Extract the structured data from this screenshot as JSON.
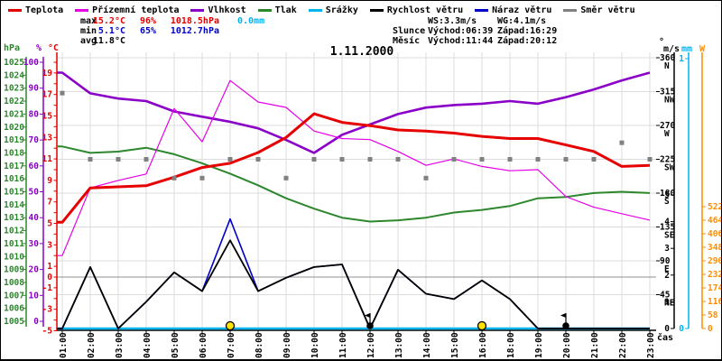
{
  "title": "1.11.2000",
  "legend": [
    {
      "label": "Teplota",
      "color": "#e60000"
    },
    {
      "label": "Přízemní teplota",
      "color": "#e500e5"
    },
    {
      "label": "Vlhkost",
      "color": "#8a00c8"
    },
    {
      "label": "Tlak",
      "color": "#2d872d"
    },
    {
      "label": "Srážky",
      "color": "#00b4f0"
    },
    {
      "label": "Rychlost větru",
      "color": "#000000"
    },
    {
      "label": "Náraz větru",
      "color": "#0000c8"
    },
    {
      "label": "Směr větru",
      "color": "#808080"
    }
  ],
  "stats": {
    "max": {
      "label": "max",
      "temp": "15.2°C",
      "hum": "96%",
      "pres": "1018.5hPa",
      "precip": "0.0mm"
    },
    "min": {
      "label": "min",
      "temp": "5.1°C",
      "hum": "65%",
      "pres": "1012.7hPa"
    },
    "avg": {
      "label": "avg",
      "temp": "11.8°C"
    },
    "ws": "WS:3.3m/s",
    "wg": "WG:4.1m/s",
    "sun": {
      "label": "Slunce",
      "rise": "Východ:06:39",
      "set": "Západ:16:29"
    },
    "moon": {
      "label": "Měsíc",
      "rise": "Východ:11:44",
      "set": "Západ:20:12"
    }
  },
  "axes": {
    "pressure_unit": "hPa",
    "humidity_unit": "%",
    "temperature_unit": "°C",
    "direction_unit": "°",
    "windspeed_unit": "m/s",
    "precip_unit": "mm",
    "radiation_unit": "W",
    "time_unit": "čas"
  },
  "colors": {
    "temperature": "#e60000",
    "ground_temperature": "#e500e5",
    "humidity": "#8a00c8",
    "pressure": "#2d872d",
    "precipitation": "#00b4f0",
    "wind_speed": "#000000",
    "wind_gust": "#0000c8",
    "wind_direction": "#808080",
    "radiation_axis": "#ff8c00",
    "grid": "#dcdcdc",
    "zero_line": "#909090",
    "sun_marker": "#ffe400",
    "moon_marker": "#000000",
    "axis_black": "#000000"
  },
  "chart_data": {
    "type": "line",
    "x": [
      "01:00",
      "02:00",
      "03:00",
      "04:00",
      "05:00",
      "06:00",
      "07:00",
      "08:00",
      "09:00",
      "10:00",
      "11:00",
      "12:00",
      "13:00",
      "14:00",
      "15:00",
      "16:00",
      "18:00",
      "19:00",
      "20:00",
      "21:00",
      "22:00",
      "23:00"
    ],
    "series": [
      {
        "name": "Teplota",
        "axis": "temp",
        "values": [
          5.1,
          8.3,
          8.4,
          8.5,
          9.3,
          10.2,
          10.6,
          11.6,
          13.0,
          15.2,
          14.4,
          14.1,
          13.7,
          13.6,
          13.4,
          13.1,
          12.9,
          12.9,
          12.3,
          11.7,
          10.3,
          10.4
        ]
      },
      {
        "name": "Přízemní teplota",
        "axis": "temp",
        "values": [
          2.0,
          8.3,
          9.0,
          9.6,
          15.7,
          12.6,
          18.3,
          16.3,
          15.8,
          13.6,
          12.9,
          12.8,
          11.7,
          10.4,
          11.0,
          10.3,
          9.9,
          10.0,
          7.5,
          6.5,
          5.9,
          5.3
        ]
      },
      {
        "name": "Vlhkost",
        "axis": "hum",
        "values": [
          96,
          88,
          86,
          85,
          81,
          79,
          77,
          74.5,
          70,
          65,
          72,
          76,
          80,
          82.5,
          83.5,
          84,
          85,
          84,
          86.5,
          89.5,
          93,
          96
        ]
      },
      {
        "name": "Tlak",
        "axis": "pres",
        "values": [
          1018.5,
          1018.0,
          1018.1,
          1018.4,
          1017.9,
          1017.2,
          1016.4,
          1015.5,
          1014.5,
          1013.7,
          1013.0,
          1012.7,
          1012.8,
          1013.0,
          1013.4,
          1013.6,
          1013.9,
          1014.5,
          1014.6,
          1014.9,
          1015.0,
          1014.9
        ]
      },
      {
        "name": "Srážky",
        "axis": "mm",
        "values": [
          0,
          0,
          0,
          0,
          0,
          0,
          0,
          0,
          0,
          0,
          0,
          0,
          0,
          0,
          0,
          0,
          0,
          0,
          0,
          0,
          0,
          0
        ]
      },
      {
        "name": "Rychlost větru",
        "axis": "ms",
        "values": [
          0,
          2.3,
          0,
          1.0,
          2.1,
          1.4,
          3.3,
          1.4,
          1.9,
          2.3,
          2.4,
          0,
          2.2,
          1.3,
          1.1,
          1.8,
          1.1,
          0,
          0,
          0,
          0,
          0
        ]
      },
      {
        "name": "Náraz větru",
        "axis": "ms",
        "values": [
          0,
          2.3,
          0,
          1.0,
          2.1,
          1.4,
          4.1,
          1.4,
          1.9,
          2.3,
          2.4,
          0,
          2.2,
          1.3,
          1.1,
          1.8,
          1.1,
          0,
          0,
          0,
          0,
          0
        ]
      },
      {
        "name": "Směr větru",
        "axis": "dir",
        "values": [
          313,
          225,
          225,
          225,
          200,
          200,
          225,
          225,
          200,
          225,
          225,
          225,
          225,
          200,
          225,
          225,
          225,
          225,
          225,
          225,
          247,
          225
        ]
      }
    ],
    "ticks": {
      "pressure": [
        1025,
        1024,
        1023,
        1022,
        1021,
        1020,
        1019,
        1018,
        1017,
        1016,
        1015,
        1014,
        1013,
        1012,
        1011,
        1010,
        1009,
        1008,
        1007,
        1006,
        1005
      ],
      "humidity": [
        100,
        90,
        80,
        70,
        60,
        50,
        40,
        30,
        20,
        10,
        0
      ],
      "temperature": [
        19,
        17,
        15,
        13,
        11,
        9,
        7,
        5,
        3,
        1,
        0,
        -1,
        -3,
        -5
      ],
      "direction": [
        {
          "deg": 360,
          "compass": "N"
        },
        {
          "deg": 315,
          "compass": "NW"
        },
        {
          "deg": 270,
          "compass": "W"
        },
        {
          "deg": 225,
          "compass": "SW"
        },
        {
          "deg": 180,
          "compass": "S"
        },
        {
          "deg": 135,
          "compass": "SE"
        },
        {
          "deg": 90,
          "compass": "E"
        },
        {
          "deg": 45,
          "compass": "NE"
        }
      ],
      "windspeed": [
        5,
        4,
        3,
        2,
        1,
        0
      ],
      "precip": [
        1,
        0
      ],
      "radiation": [
        522,
        464,
        406,
        348,
        290,
        232,
        174,
        116,
        58,
        0
      ]
    },
    "axis_ranges": {
      "temp": [
        -5,
        20
      ],
      "hum": [
        0,
        100
      ],
      "pres": [
        1005,
        1025
      ],
      "ms": [
        0,
        5
      ],
      "dir": [
        0,
        360
      ],
      "mm": [
        0,
        1
      ]
    },
    "markers": {
      "sun_indices": [
        6,
        15
      ],
      "moon_indices": [
        11,
        18
      ]
    },
    "legend_position": "top",
    "grid": true
  }
}
